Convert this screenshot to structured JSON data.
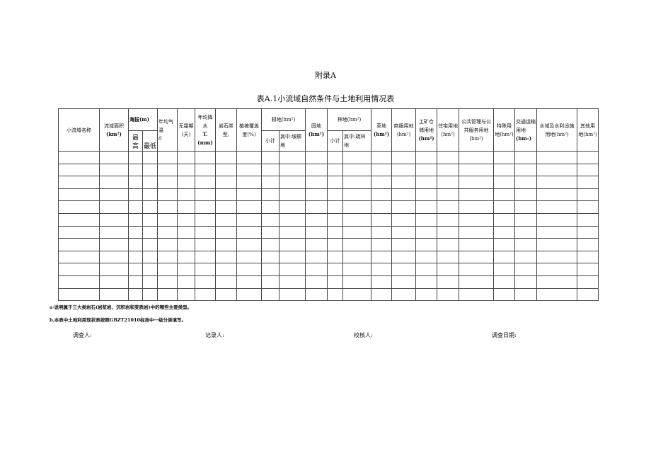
{
  "appendix": "附录A",
  "caption": "表A.1小流域自然条件与土地利用情况表",
  "headers": {
    "name": "小流域名称",
    "area": "流域面积",
    "area_unit": "(km²)",
    "altitude": "海拔(m)",
    "alt_max": "最高",
    "alt_min": "最低",
    "temp": "年均气温",
    "temp_unit": "0",
    "frost": "无霜期",
    "frost_unit": "(天)",
    "rain": "年均降水",
    "rain_t": "T.",
    "rain_unit": "(mm)",
    "rock": "岩石类型,",
    "veg": "植被覆盖",
    "veg2": "度(%)",
    "farm": "耕地(hm²)",
    "farm_sub": "小计",
    "farm_slope": "其中:坡耕地",
    "garden": "园地",
    "garden_unit": "(hm²)",
    "forest": "林地(hm²)",
    "forest_sub": "小计",
    "forest_sparse": "其中:疏林地",
    "grass": "草地",
    "grass_unit": "(hm²)",
    "commerce": "商服用地(hm²)",
    "industry": "工矿仓储用地",
    "industry_unit": "(hm²)",
    "residential": "住宅用地(hm²)",
    "public": "公共管理与公共服务用地(hm²)",
    "special": "特殊用地(hm²)",
    "traffic": "交通运输用地",
    "traffic_unit": "(hm-)",
    "water": "水域及水利设施用地(hm²)",
    "other": "其他用地(hm²)"
  },
  "row_count": 12,
  "notes": [
    "a·说明属于三大类岩石(岩浆岩、沉积岩和变质岩)中的哪些主要类型。",
    "b.本表中土地利用现状表按照GBZT21010标准中一级分类填写。"
  ],
  "signatures": [
    "调查人:",
    "记录人:",
    "校核人:",
    "调查日期:"
  ]
}
